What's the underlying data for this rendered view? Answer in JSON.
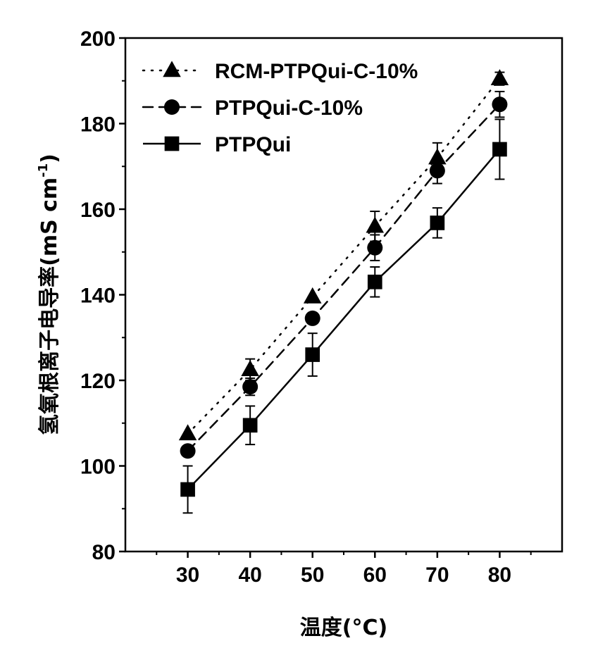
{
  "chart_data": {
    "type": "line",
    "title": "",
    "xlabel": "温度(°C)",
    "ylabel_prefix": "氢氧根离子电导率(mS cm",
    "ylabel_superscript": "-1",
    "ylabel_suffix": ")",
    "x": [
      30,
      40,
      50,
      60,
      70,
      80
    ],
    "xlim": [
      20,
      90
    ],
    "ylim": [
      80,
      200
    ],
    "xticks": [
      "30",
      "40",
      "50",
      "60",
      "70",
      "80"
    ],
    "yticks": [
      "80",
      "100",
      "120",
      "140",
      "160",
      "180",
      "200"
    ],
    "legend_position": "top-left",
    "series": [
      {
        "name": "RCM-PTPQui-C-10%",
        "marker": "triangle",
        "line": "dotted",
        "values": [
          107.5,
          122.5,
          139.5,
          156,
          172,
          190.5
        ],
        "errors": [
          0,
          2.5,
          0,
          3.5,
          3.5,
          1.5
        ]
      },
      {
        "name": "PTPQui-C-10%",
        "marker": "circle",
        "line": "dashed",
        "values": [
          103.5,
          118.5,
          134.5,
          151,
          169,
          184.5
        ],
        "errors": [
          0,
          2,
          0,
          3,
          3,
          3
        ]
      },
      {
        "name": "PTPQui",
        "marker": "square",
        "line": "solid",
        "values": [
          94.5,
          109.5,
          126,
          143,
          156.8,
          174
        ],
        "errors": [
          5.5,
          4.5,
          5,
          3.5,
          3.5,
          7
        ]
      }
    ]
  }
}
